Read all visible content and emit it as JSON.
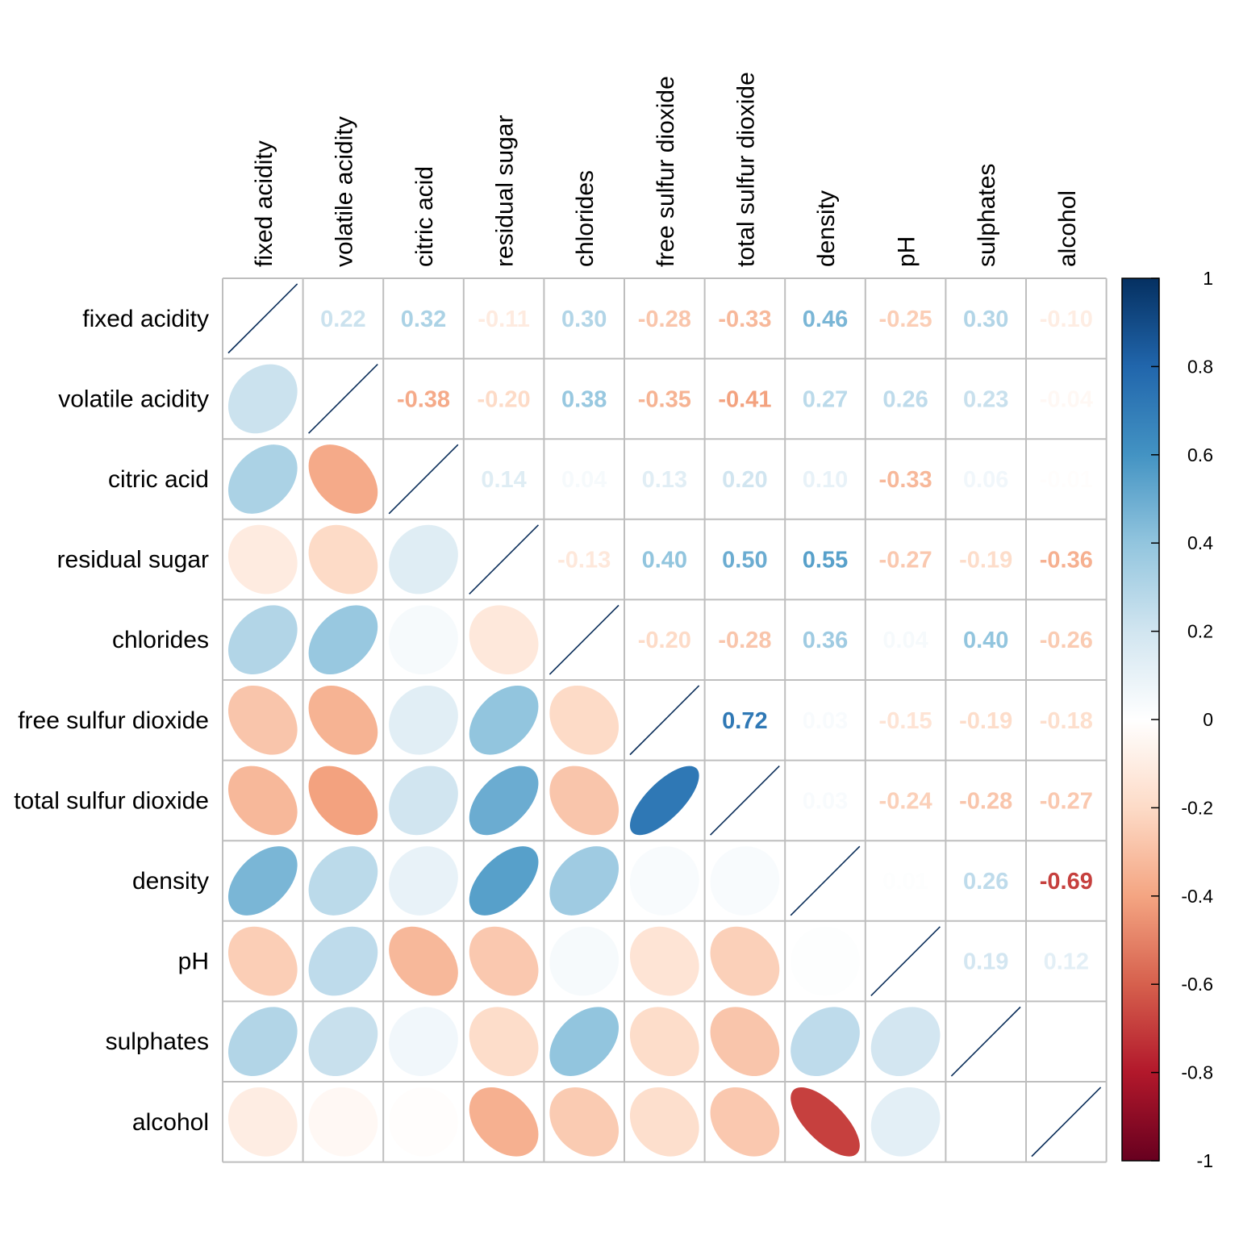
{
  "chart_data": {
    "type": "heatmap",
    "subtype": "correlation-matrix",
    "upper_triangle": "number",
    "lower_triangle": "ellipse",
    "diagonal": "line",
    "variables": [
      "fixed acidity",
      "volatile acidity",
      "citric acid",
      "residual sugar",
      "chlorides",
      "free sulfur dioxide",
      "total sulfur dioxide",
      "density",
      "pH",
      "sulphates",
      "alcohol"
    ],
    "matrix": [
      [
        1.0,
        0.22,
        0.32,
        -0.11,
        0.3,
        -0.28,
        -0.33,
        0.46,
        -0.25,
        0.3,
        -0.1
      ],
      [
        0.22,
        1.0,
        -0.38,
        -0.2,
        0.38,
        -0.35,
        -0.41,
        0.27,
        0.26,
        0.23,
        -0.04
      ],
      [
        0.32,
        -0.38,
        1.0,
        0.14,
        0.04,
        0.13,
        0.2,
        0.1,
        -0.33,
        0.06,
        -0.01
      ],
      [
        -0.11,
        -0.2,
        0.14,
        1.0,
        -0.13,
        0.4,
        0.5,
        0.55,
        -0.27,
        -0.19,
        -0.36
      ],
      [
        0.3,
        0.38,
        0.04,
        -0.13,
        1.0,
        -0.2,
        -0.28,
        0.36,
        0.04,
        0.4,
        -0.26
      ],
      [
        -0.28,
        -0.35,
        0.13,
        0.4,
        -0.2,
        1.0,
        0.72,
        0.03,
        -0.15,
        -0.19,
        -0.18
      ],
      [
        -0.33,
        -0.41,
        0.2,
        0.5,
        -0.28,
        0.72,
        1.0,
        0.03,
        -0.24,
        -0.28,
        -0.27
      ],
      [
        0.46,
        0.27,
        0.1,
        0.55,
        0.36,
        0.03,
        0.03,
        1.0,
        0.01,
        0.26,
        -0.69
      ],
      [
        -0.25,
        0.26,
        -0.33,
        -0.27,
        0.04,
        -0.15,
        -0.24,
        0.01,
        1.0,
        0.19,
        0.12
      ],
      [
        0.3,
        0.23,
        0.06,
        -0.19,
        0.4,
        -0.19,
        -0.28,
        0.26,
        0.19,
        1.0,
        0.0
      ],
      [
        -0.1,
        -0.04,
        -0.01,
        -0.36,
        -0.26,
        -0.18,
        -0.27,
        -0.69,
        0.12,
        0.0,
        1.0
      ]
    ],
    "value_labels": [
      [
        "",
        "0.22",
        "0.32",
        "-0.11",
        "0.30",
        "-0.28",
        "-0.33",
        "0.46",
        "-0.25",
        "0.30",
        "-0.10"
      ],
      [
        "",
        "",
        "-0.38",
        "-0.20",
        "0.38",
        "-0.35",
        "-0.41",
        "0.27",
        "0.26",
        "0.23",
        "-0.04"
      ],
      [
        "",
        "",
        "",
        "0.14",
        "0.04",
        "0.13",
        "0.20",
        "0.10",
        "-0.33",
        "0.06",
        "-0.01"
      ],
      [
        "",
        "",
        "",
        "",
        "-0.13",
        "0.40",
        "0.50",
        "0.55",
        "-0.27",
        "-0.19",
        "-0.36"
      ],
      [
        "",
        "",
        "",
        "",
        "",
        "-0.20",
        "-0.28",
        "0.36",
        "0.04",
        "0.40",
        "-0.26"
      ],
      [
        "",
        "",
        "",
        "",
        "",
        "",
        "0.72",
        "0.03",
        "-0.15",
        "-0.19",
        "-0.18"
      ],
      [
        "",
        "",
        "",
        "",
        "",
        "",
        "",
        "0.03",
        "-0.24",
        "-0.28",
        "-0.27"
      ],
      [
        "",
        "",
        "",
        "",
        "",
        "",
        "",
        "",
        "0.01",
        "0.26",
        "-0.69"
      ],
      [
        "",
        "",
        "",
        "",
        "",
        "",
        "",
        "",
        "",
        "0.19",
        "0.12"
      ],
      [
        "",
        "",
        "",
        "",
        "",
        "",
        "",
        "",
        "",
        "",
        ""
      ],
      [
        "",
        "",
        "",
        "",
        "",
        "",
        "",
        "",
        "",
        "",
        ""
      ]
    ],
    "colorbar": {
      "range": [
        -1,
        1
      ],
      "ticks": [
        "1",
        "0.8",
        "0.6",
        "0.4",
        "0.2",
        "0",
        "-0.2",
        "-0.4",
        "-0.6",
        "-0.8",
        "-1"
      ],
      "colors": [
        "#67001F",
        "#B2182B",
        "#D6604D",
        "#F4A582",
        "#FDDBC7",
        "#FFFFFF",
        "#D1E5F0",
        "#92C5DE",
        "#4393C3",
        "#2166AC",
        "#053061"
      ]
    },
    "grid": true,
    "legend": "right"
  }
}
